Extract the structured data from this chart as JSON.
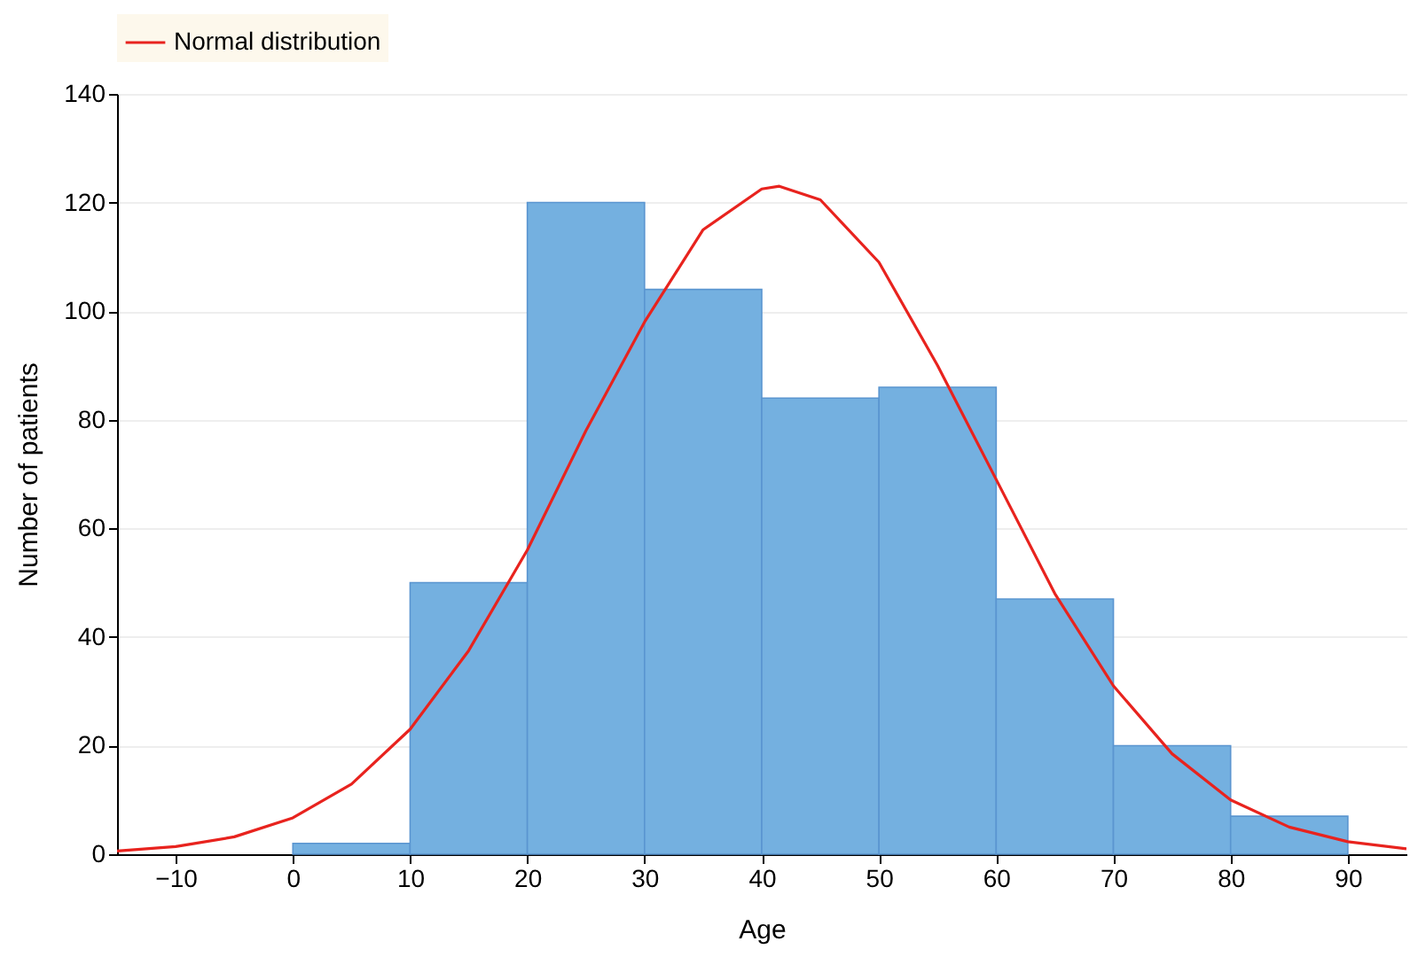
{
  "chart_data": {
    "type": "histogram",
    "xlabel": "Age",
    "ylabel": "Number of patients",
    "bins": [
      0,
      10,
      20,
      30,
      40,
      50,
      60,
      70,
      80,
      90
    ],
    "values": [
      2,
      50,
      120,
      104,
      84,
      86,
      47,
      20,
      7
    ],
    "color": "#74b0e0",
    "series": [
      {
        "type": "line",
        "name": "Normal distribution",
        "color": "#e8231e",
        "x": [
          -15,
          -10,
          -5,
          0,
          5,
          10,
          15,
          20,
          25,
          30,
          35,
          40,
          41.5,
          45,
          50,
          55,
          60,
          65,
          70,
          75,
          80,
          85,
          90,
          95
        ],
        "values": [
          0.6,
          1.4,
          3.2,
          6.7,
          12.9,
          23,
          37.5,
          56,
          78,
          98,
          115,
          122.5,
          123,
          120.5,
          109,
          90,
          69,
          48,
          31,
          18.5,
          10,
          5,
          2.3,
          1
        ]
      }
    ],
    "xlim": [
      -15,
      95
    ],
    "xticks": [
      -10,
      0,
      10,
      20,
      30,
      40,
      50,
      60,
      70,
      80,
      90
    ],
    "ylim": [
      0,
      140
    ],
    "yticks": [
      0,
      20,
      40,
      60,
      80,
      100,
      120,
      140
    ],
    "grid": "y",
    "legend": "top",
    "line_style": "solid",
    "marker": "none"
  }
}
